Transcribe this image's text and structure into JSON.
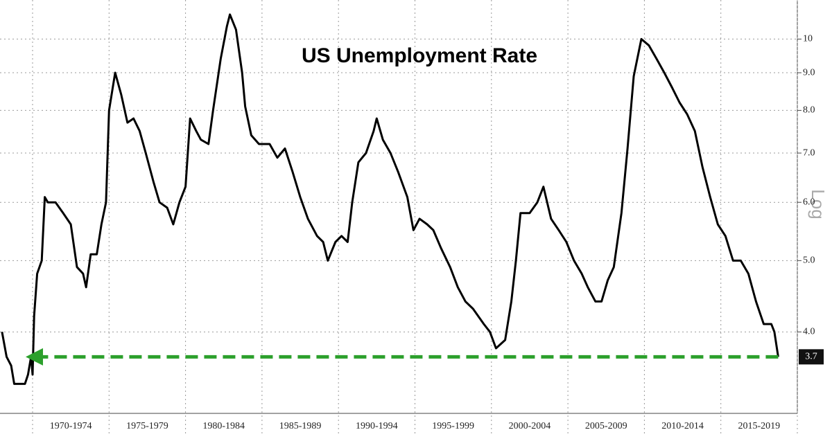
{
  "chart_data": {
    "type": "line",
    "title": "US Unemployment Rate",
    "color": "#000000",
    "x": [
      1968.0,
      1968.3,
      1968.6,
      1968.8,
      1969.5,
      1969.7,
      1969.9,
      1970.0,
      1970.1,
      1970.3,
      1970.6,
      1970.8,
      1971.0,
      1971.5,
      1972.0,
      1972.5,
      1972.9,
      1973.3,
      1973.5,
      1973.8,
      1974.2,
      1974.5,
      1974.8,
      1975.0,
      1975.4,
      1975.8,
      1976.2,
      1976.6,
      1977.0,
      1977.4,
      1977.9,
      1978.3,
      1978.8,
      1979.2,
      1979.6,
      1980.0,
      1980.3,
      1980.7,
      1981.0,
      1981.5,
      1981.8,
      1982.3,
      1982.7,
      1982.9,
      1983.3,
      1983.7,
      1983.9,
      1984.3,
      1984.8,
      1985.5,
      1986.0,
      1986.5,
      1987.0,
      1987.5,
      1988.0,
      1988.6,
      1989.0,
      1989.3,
      1989.8,
      1990.2,
      1990.6,
      1990.9,
      1991.3,
      1991.8,
      1992.3,
      1992.5,
      1992.9,
      1993.4,
      1993.9,
      1994.5,
      1994.9,
      1995.3,
      1995.8,
      1996.2,
      1996.7,
      1997.3,
      1997.8,
      1998.3,
      1998.8,
      1999.5,
      1999.9,
      2000.3,
      2000.9,
      2001.3,
      2001.6,
      2001.9,
      2002.5,
      2003.0,
      2003.4,
      2003.9,
      2004.4,
      2004.9,
      2005.4,
      2005.9,
      2006.3,
      2006.8,
      2007.2,
      2007.6,
      2008.0,
      2008.5,
      2008.9,
      2009.3,
      2009.8,
      2010.3,
      2010.8,
      2011.3,
      2011.8,
      2012.3,
      2012.8,
      2013.3,
      2013.8,
      2014.3,
      2014.8,
      2015.3,
      2015.8,
      2016.3,
      2016.8,
      2017.3,
      2017.8,
      2018.3,
      2018.5,
      2018.75
    ],
    "values": [
      4.0,
      3.7,
      3.6,
      3.4,
      3.4,
      3.5,
      3.7,
      3.5,
      4.2,
      4.8,
      5.0,
      6.1,
      6.0,
      6.0,
      5.8,
      5.6,
      4.9,
      4.8,
      4.6,
      5.1,
      5.1,
      5.6,
      6.0,
      8.0,
      9.0,
      8.4,
      7.7,
      7.8,
      7.5,
      7.0,
      6.4,
      6.0,
      5.9,
      5.6,
      6.0,
      6.3,
      7.8,
      7.5,
      7.3,
      7.2,
      8.0,
      9.4,
      10.4,
      10.8,
      10.3,
      9.0,
      8.1,
      7.4,
      7.2,
      7.2,
      6.9,
      7.1,
      6.6,
      6.1,
      5.7,
      5.4,
      5.3,
      5.0,
      5.3,
      5.4,
      5.3,
      6.0,
      6.8,
      7.0,
      7.5,
      7.8,
      7.3,
      7.0,
      6.6,
      6.1,
      5.5,
      5.7,
      5.6,
      5.5,
      5.2,
      4.9,
      4.6,
      4.4,
      4.3,
      4.1,
      4.0,
      3.8,
      3.9,
      4.4,
      5.0,
      5.8,
      5.8,
      6.0,
      6.3,
      5.7,
      5.5,
      5.3,
      5.0,
      4.8,
      4.6,
      4.4,
      4.4,
      4.7,
      4.9,
      5.8,
      7.1,
      8.9,
      10.0,
      9.8,
      9.4,
      9.0,
      8.6,
      8.2,
      7.9,
      7.5,
      6.7,
      6.1,
      5.6,
      5.4,
      5.0,
      5.0,
      4.8,
      4.4,
      4.1,
      4.1,
      4.0,
      3.7
    ],
    "xlim": [
      1967.87,
      2020
    ],
    "xticks": [
      1970,
      1975,
      1980,
      1985,
      1990,
      1995,
      2000,
      2005,
      2010,
      2015,
      2020
    ],
    "periods": [
      "1970-1974",
      "1975-1979",
      "1980-1984",
      "1985-1989",
      "1990-1994",
      "1995-1999",
      "2000-2004",
      "2005-2009",
      "2010-2014",
      "2015-2019"
    ],
    "ylim": [
      3.1,
      11.3
    ],
    "yscale": "log",
    "scale_label": "Log",
    "yticks": [
      {
        "value": 4,
        "label": "4.0"
      },
      {
        "value": 5,
        "label": "5.0"
      },
      {
        "value": 6,
        "label": "6.0"
      },
      {
        "value": 7,
        "label": "7.0"
      },
      {
        "value": 8,
        "label": "8.0"
      },
      {
        "value": 9,
        "label": "9.0"
      },
      10
    ],
    "grid": true,
    "reference": {
      "value": 3.7,
      "label": "3.7",
      "color": "#2ca02c",
      "x": [
        1970,
        2018.75
      ]
    }
  }
}
